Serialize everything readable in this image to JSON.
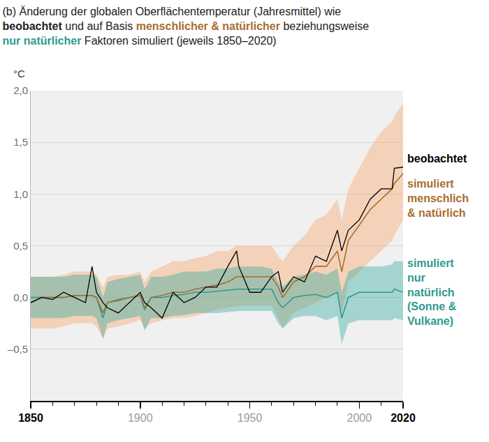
{
  "chart_data": {
    "type": "line",
    "title": [
      [
        {
          "text": "(b) Änderung der globalen Oberflächentemperatur (Jahresmittel) wie"
        }
      ],
      [
        {
          "text": "beobachtet",
          "bold": true
        },
        {
          "text": " und auf Basis "
        },
        {
          "text": "menschlicher & natürlicher",
          "bold": true,
          "color": "#a86d2f"
        },
        {
          "text": " beziehungsweise"
        }
      ],
      [
        {
          "text": "nur natürlicher",
          "bold": true,
          "color": "#2f9a8f"
        },
        {
          "text": " Faktoren simuliert (jeweils 1850–2020)"
        }
      ]
    ],
    "ylabel": "°C",
    "x": [
      1850,
      1855,
      1860,
      1865,
      1870,
      1875,
      1878,
      1880,
      1883,
      1885,
      1890,
      1895,
      1900,
      1902,
      1905,
      1910,
      1915,
      1920,
      1925,
      1930,
      1935,
      1940,
      1944,
      1945,
      1950,
      1955,
      1960,
      1963,
      1965,
      1970,
      1975,
      1980,
      1985,
      1990,
      1992,
      1995,
      2000,
      2005,
      2010,
      2015,
      2016,
      2020
    ],
    "series": [
      {
        "name": "beobachtet",
        "color": "#000000",
        "values": [
          -0.05,
          0.0,
          -0.02,
          0.05,
          0.0,
          -0.05,
          0.3,
          0.05,
          -0.05,
          -0.1,
          -0.15,
          -0.05,
          0.05,
          -0.05,
          -0.1,
          -0.2,
          0.05,
          -0.05,
          0.0,
          0.1,
          0.1,
          0.3,
          0.45,
          0.3,
          0.05,
          0.05,
          0.2,
          0.25,
          0.05,
          0.2,
          0.15,
          0.4,
          0.35,
          0.65,
          0.45,
          0.65,
          0.75,
          0.95,
          1.05,
          1.05,
          1.25,
          1.26
        ]
      },
      {
        "name": "simuliert\nmenschlich\n& natürlich",
        "color": "#a86d2f",
        "values": [
          -0.05,
          0.0,
          0.0,
          0.0,
          0.02,
          0.02,
          0.02,
          0.0,
          -0.15,
          -0.05,
          -0.02,
          0.0,
          0.02,
          -0.1,
          0.0,
          0.02,
          0.05,
          0.05,
          0.08,
          0.1,
          0.12,
          0.15,
          0.2,
          0.2,
          0.2,
          0.2,
          0.2,
          0.1,
          0.0,
          0.15,
          0.2,
          0.3,
          0.3,
          0.45,
          0.25,
          0.55,
          0.7,
          0.85,
          0.95,
          1.05,
          1.1,
          1.2
        ],
        "lower": [
          -0.3,
          -0.3,
          -0.3,
          -0.28,
          -0.25,
          -0.25,
          -0.25,
          -0.28,
          -0.4,
          -0.3,
          -0.28,
          -0.25,
          -0.22,
          -0.3,
          -0.25,
          -0.22,
          -0.2,
          -0.2,
          -0.18,
          -0.15,
          -0.12,
          -0.1,
          -0.08,
          -0.08,
          -0.08,
          -0.08,
          -0.08,
          -0.2,
          -0.3,
          -0.15,
          -0.1,
          -0.05,
          0.0,
          0.05,
          -0.15,
          0.15,
          0.25,
          0.35,
          0.45,
          0.55,
          0.6,
          0.75
        ],
        "upper": [
          0.2,
          0.2,
          0.2,
          0.22,
          0.25,
          0.25,
          0.25,
          0.22,
          0.1,
          0.2,
          0.22,
          0.22,
          0.25,
          0.15,
          0.25,
          0.3,
          0.35,
          0.35,
          0.38,
          0.4,
          0.45,
          0.45,
          0.5,
          0.5,
          0.5,
          0.5,
          0.5,
          0.4,
          0.35,
          0.5,
          0.6,
          0.75,
          0.8,
          0.95,
          0.75,
          1.05,
          1.25,
          1.45,
          1.6,
          1.7,
          1.75,
          1.88
        ]
      },
      {
        "name": "simuliert\nnur\nnatürlich\n(Sonne &\nVulkane)",
        "color": "#2f9a8f",
        "values": [
          0.0,
          0.0,
          0.0,
          0.0,
          0.02,
          0.02,
          0.02,
          0.0,
          -0.2,
          -0.05,
          -0.03,
          0.0,
          0.02,
          -0.12,
          0.0,
          0.0,
          0.02,
          0.03,
          0.05,
          0.05,
          0.06,
          0.07,
          0.08,
          0.08,
          0.08,
          0.08,
          0.08,
          -0.05,
          -0.1,
          0.0,
          0.02,
          0.03,
          0.0,
          0.05,
          -0.2,
          0.0,
          0.05,
          0.05,
          0.05,
          0.05,
          0.08,
          0.05
        ],
        "lower": [
          -0.2,
          -0.2,
          -0.2,
          -0.2,
          -0.18,
          -0.18,
          -0.18,
          -0.2,
          -0.4,
          -0.25,
          -0.22,
          -0.2,
          -0.18,
          -0.32,
          -0.2,
          -0.2,
          -0.18,
          -0.17,
          -0.15,
          -0.15,
          -0.15,
          -0.14,
          -0.13,
          -0.13,
          -0.13,
          -0.13,
          -0.13,
          -0.25,
          -0.3,
          -0.2,
          -0.18,
          -0.18,
          -0.22,
          -0.18,
          -0.45,
          -0.25,
          -0.22,
          -0.22,
          -0.22,
          -0.22,
          -0.2,
          -0.22
        ],
        "upper": [
          0.2,
          0.2,
          0.2,
          0.2,
          0.22,
          0.22,
          0.22,
          0.2,
          0.0,
          0.15,
          0.18,
          0.2,
          0.22,
          0.08,
          0.2,
          0.2,
          0.22,
          0.25,
          0.25,
          0.25,
          0.28,
          0.28,
          0.3,
          0.3,
          0.3,
          0.3,
          0.28,
          0.15,
          0.1,
          0.2,
          0.22,
          0.25,
          0.22,
          0.28,
          0.05,
          0.25,
          0.3,
          0.3,
          0.3,
          0.32,
          0.35,
          0.35
        ]
      }
    ],
    "xlim": [
      1850,
      2020
    ],
    "xticks": [
      1850,
      1900,
      1950,
      2000,
      2020
    ],
    "ylim": [
      -1.0,
      2.0
    ],
    "yticks": [
      {
        "value": -0.5,
        "label": "–0,5"
      },
      {
        "value": 0,
        "label": "0,0"
      },
      {
        "value": 0.5,
        "label": "0,5"
      },
      {
        "value": 1,
        "label": "1,0"
      },
      {
        "value": 1.5,
        "label": "1,5"
      },
      {
        "value": 2,
        "label": "2,0"
      }
    ],
    "grid": true
  }
}
